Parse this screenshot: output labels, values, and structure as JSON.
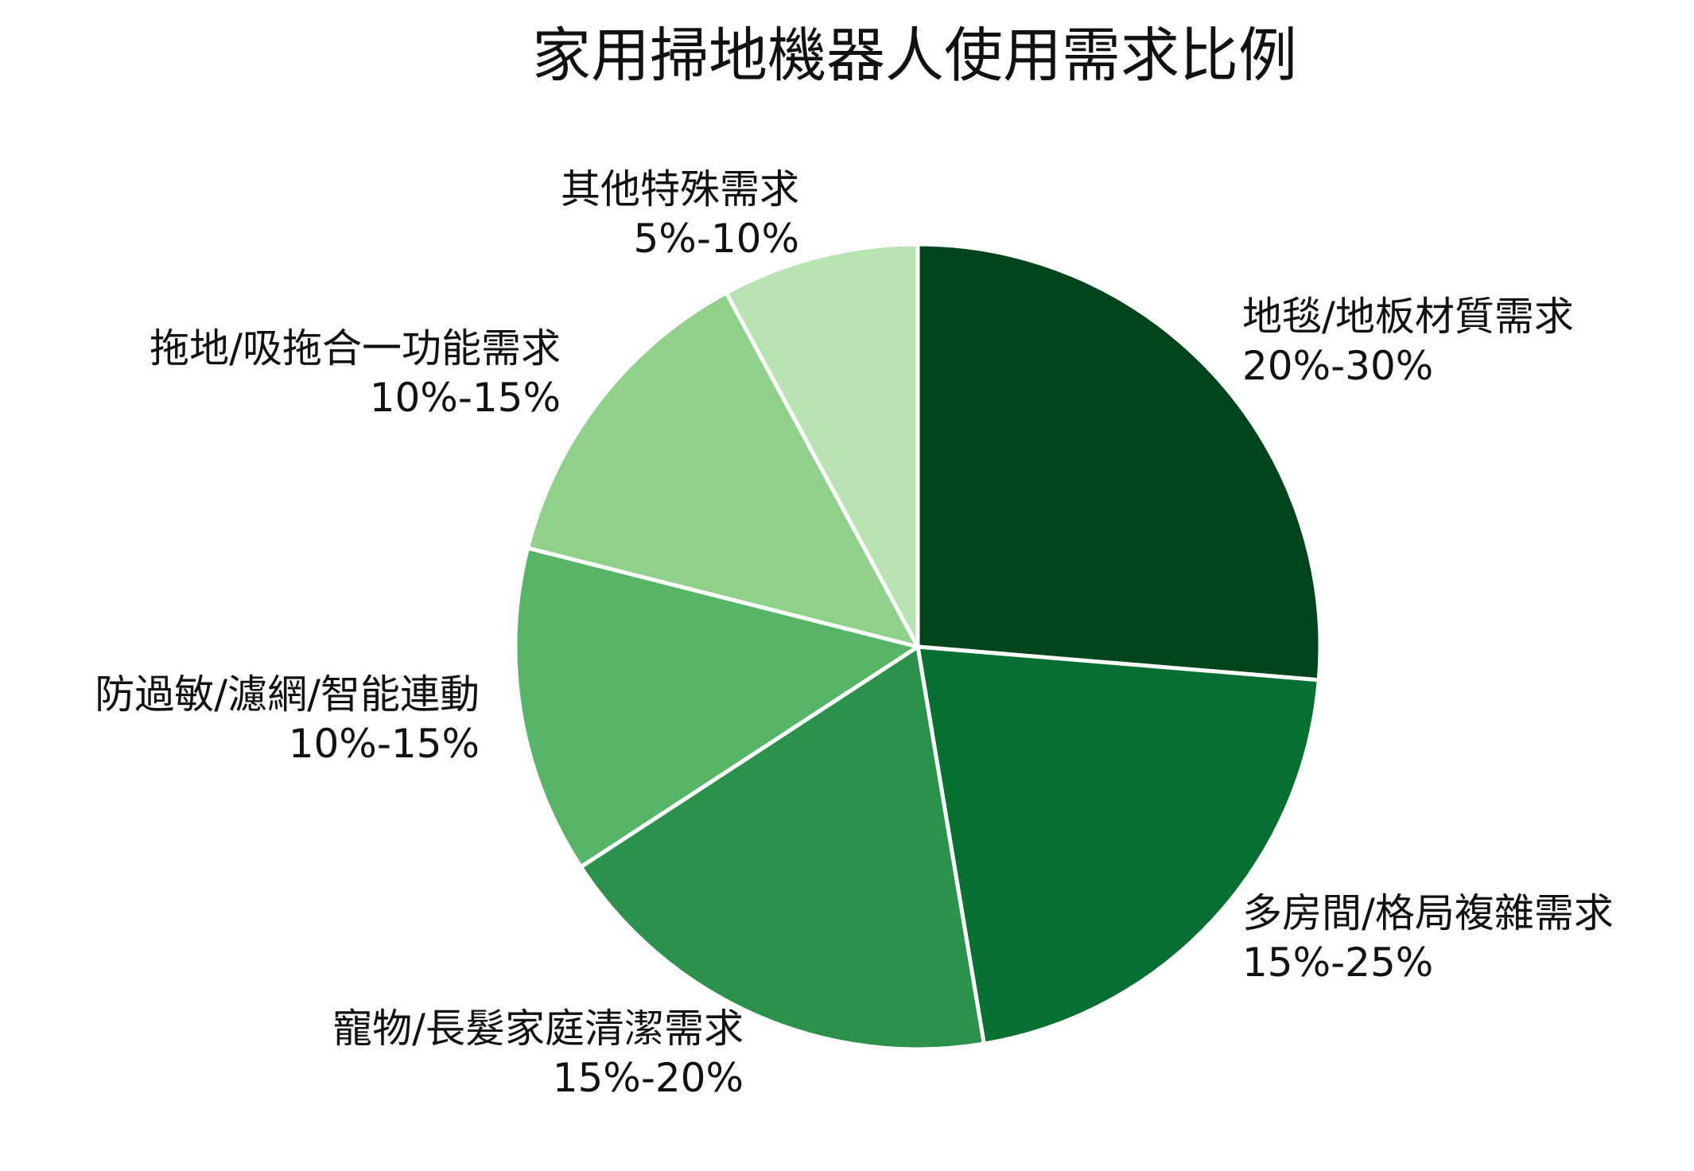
{
  "chart_data": {
    "type": "pie",
    "title": "家用掃地機器人使用需求比例",
    "legend": "none",
    "slices": [
      {
        "label": "地毯/地板材質需求",
        "value_label": "20%-30%",
        "value": 25,
        "color": "#00441B"
      },
      {
        "label": "多房間/格局複雜需求",
        "value_label": "15%-25%",
        "value": 20,
        "color": "#067030"
      },
      {
        "label": "寵物/長髮家庭清潔需求",
        "value_label": "15%-20%",
        "value": 17.5,
        "color": "#2C924B"
      },
      {
        "label": "防過敏/濾網/智能連動",
        "value_label": "10%-15%",
        "value": 12.5,
        "color": "#56B567"
      },
      {
        "label": "拖地/吸拖合一功能需求",
        "value_label": "10%-15%",
        "value": 12.5,
        "color": "#8FD08A"
      },
      {
        "label": "其他特殊需求",
        "value_label": "5%-10%",
        "value": 7.5,
        "color": "#B9E3B2"
      }
    ]
  }
}
